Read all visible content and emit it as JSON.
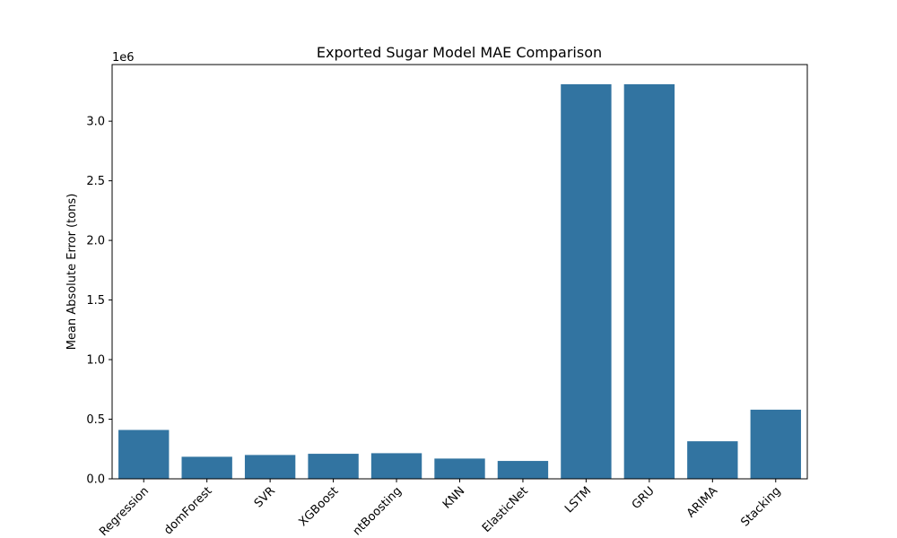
{
  "chart_data": {
    "type": "bar",
    "title": "Exported Sugar Model MAE Comparison",
    "xlabel": "",
    "ylabel": "Mean Absolute Error (tons)",
    "y_offset_label": "1e6",
    "categories": [
      "Linear Regression",
      "RandomForest",
      "SVR",
      "XGBoost",
      "GradientBoosting",
      "KNN",
      "ElasticNet",
      "LSTM",
      "GRU",
      "ARIMA",
      "Stacking"
    ],
    "tick_labels": [
      "Regression",
      "domForest",
      "SVR",
      "XGBoost",
      "ntBoosting",
      "KNN",
      "ElasticNet",
      "LSTM",
      "GRU",
      "ARIMA",
      "Stacking"
    ],
    "values": [
      410000,
      185000,
      200000,
      210000,
      215000,
      170000,
      150000,
      3310000,
      3310000,
      315000,
      580000
    ],
    "ylim": [
      0,
      3475000
    ],
    "yticks": [
      0,
      500000,
      1000000,
      1500000,
      2000000,
      2500000,
      3000000
    ],
    "ytick_labels": [
      "0.0",
      "0.5",
      "1.0",
      "1.5",
      "2.0",
      "2.5",
      "3.0"
    ],
    "bar_color": "#3274a1",
    "grid": false,
    "legend": "none"
  }
}
